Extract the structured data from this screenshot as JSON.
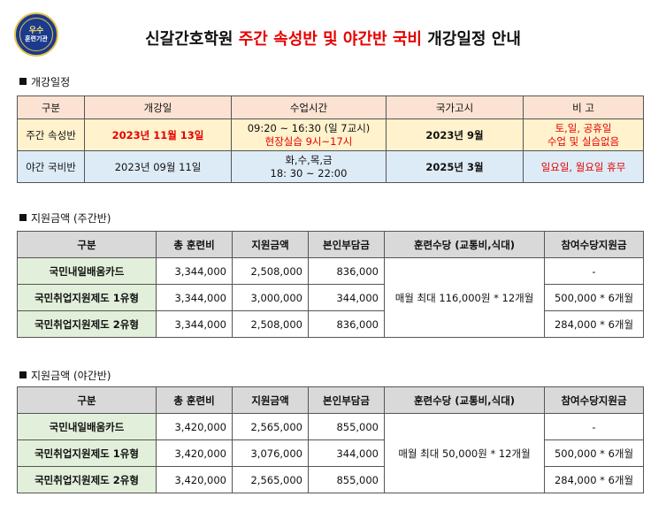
{
  "logo": {
    "line1": "우수",
    "line2": "훈련기관"
  },
  "title": {
    "part1": "신갈간호학원 ",
    "red": "주간 속성반 및 야간반 국비",
    "part2": " 개강일정 안내"
  },
  "schedule": {
    "heading": "개강일정",
    "headers": [
      "구분",
      "개강일",
      "수업시간",
      "국가고시",
      "비 고"
    ],
    "rows": [
      {
        "category": "주간 속성반",
        "start": "2023년 11월 13일",
        "time1": "09:20 ~ 16:30 (일 7교시)",
        "time2": "현장실습 9시~17시",
        "exam": "2023년 9월",
        "note1": "토,일, 공휴일",
        "note2": "수업 및 실습없음"
      },
      {
        "category": "야간 국비반",
        "start": "2023년 09월 11일",
        "time1": "화,수,목,금",
        "time2": "18: 30 ~ 22:00",
        "exam": "2025년 3월",
        "note1": "일요일, 월요일 휴무"
      }
    ]
  },
  "day_support": {
    "heading": "지원금액 (주간반)",
    "headers": [
      "구분",
      "총 훈련비",
      "지원금액",
      "본인부담금",
      "훈련수당 (교통비,식대)",
      "참여수당지원금"
    ],
    "rows": [
      {
        "name": "국민내일배움카드",
        "total": "3,344,000",
        "support": "2,508,000",
        "self": "836,000",
        "bonus": "-"
      },
      {
        "name": "국민취업지원제도 1유형",
        "total": "3,344,000",
        "support": "3,000,000",
        "self": "344,000",
        "bonus": "500,000 * 6개월"
      },
      {
        "name": "국민취업지원제도 2유형",
        "total": "3,344,000",
        "support": "2,508,000",
        "self": "836,000",
        "bonus": "284,000 * 6개월"
      }
    ],
    "allowance": "매월 최대 116,000원 * 12개월"
  },
  "night_support": {
    "heading": "지원금액 (야간반)",
    "headers": [
      "구분",
      "총 훈련비",
      "지원금액",
      "본인부담금",
      "훈련수당 (교통비,식대)",
      "참여수당지원금"
    ],
    "rows": [
      {
        "name": "국민내일배움카드",
        "total": "3,420,000",
        "support": "2,565,000",
        "self": "855,000",
        "bonus": "-"
      },
      {
        "name": "국민취업지원제도 1유형",
        "total": "3,420,000",
        "support": "3,076,000",
        "self": "344,000",
        "bonus": "500,000 * 6개월"
      },
      {
        "name": "국민취업지원제도 2유형",
        "total": "3,420,000",
        "support": "2,565,000",
        "self": "855,000",
        "bonus": "284,000 * 6개월"
      }
    ],
    "allowance": "매월 최대 50,000원 * 12개월"
  }
}
